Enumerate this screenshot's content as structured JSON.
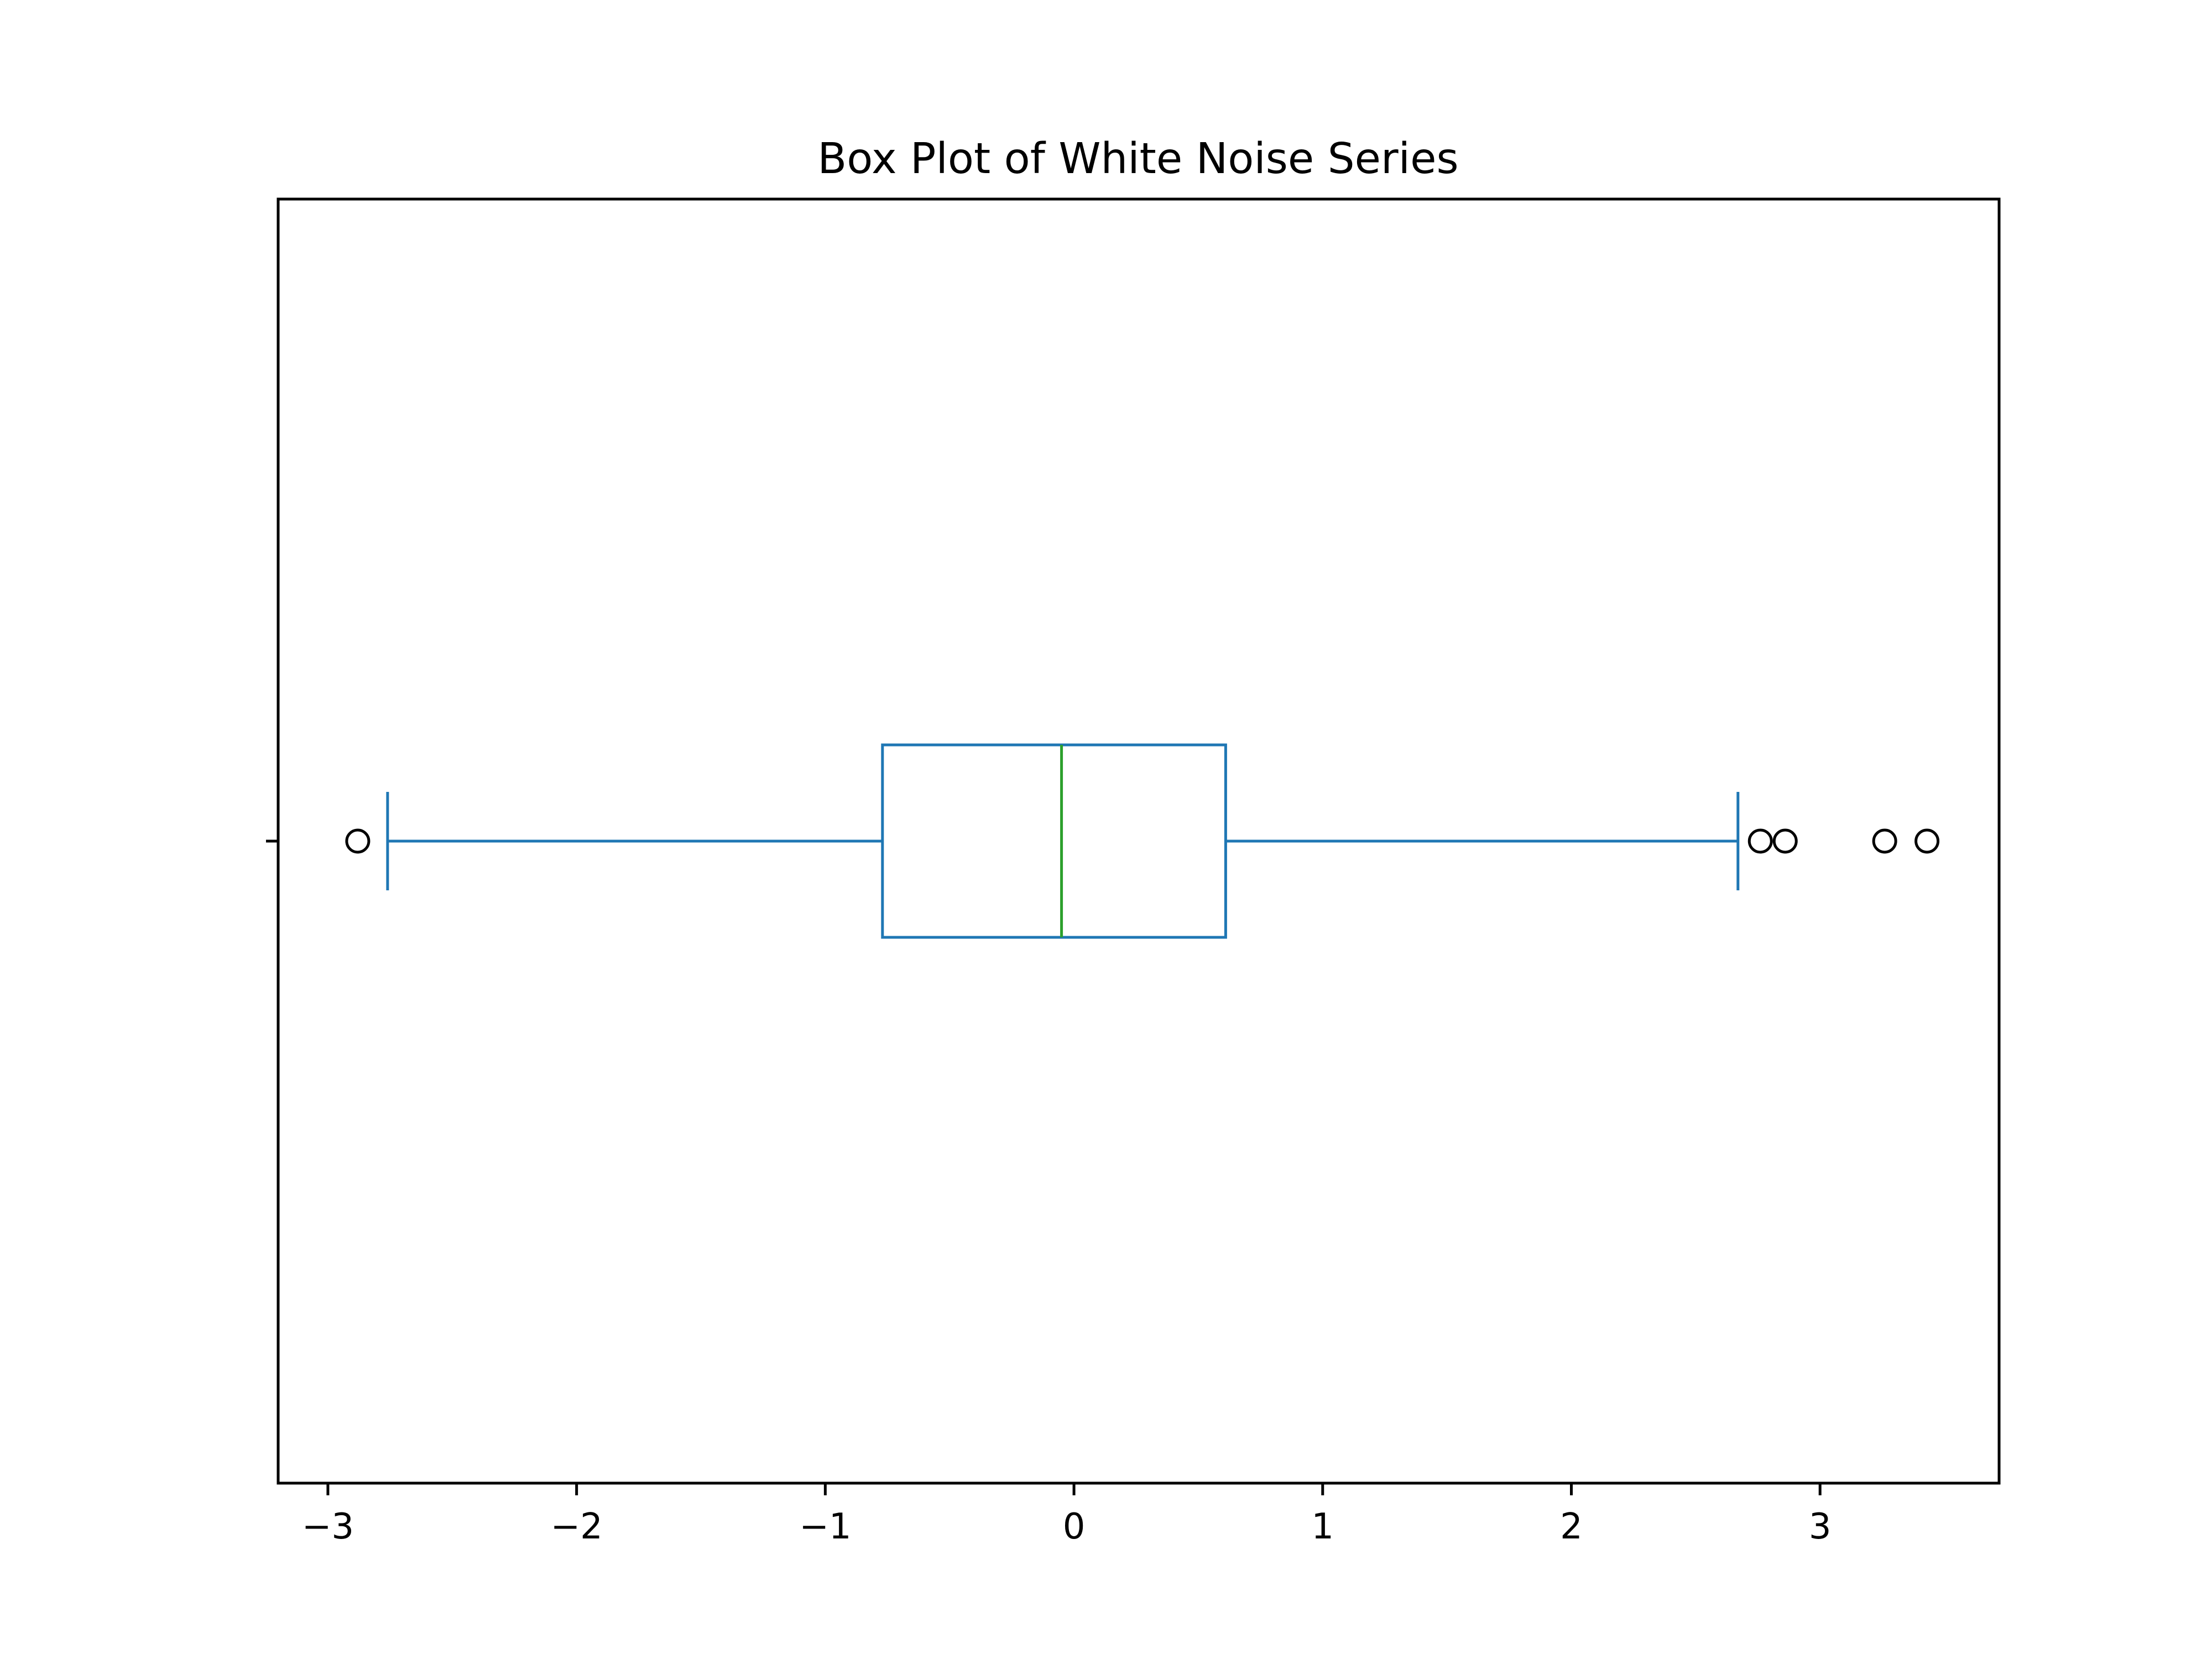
{
  "chart_data": {
    "type": "box",
    "title": "Box Plot of White Noise Series",
    "xlabel": "",
    "ylabel": "",
    "orientation": "horizontal",
    "xlim": [
      -3.2,
      3.72
    ],
    "xticks": [
      {
        "value": -3,
        "label": "−3"
      },
      {
        "value": -2,
        "label": "−2"
      },
      {
        "value": -1,
        "label": "−1"
      },
      {
        "value": 0,
        "label": "0"
      },
      {
        "value": 1,
        "label": "1"
      },
      {
        "value": 2,
        "label": "2"
      },
      {
        "value": 3,
        "label": "3"
      }
    ],
    "series": [
      {
        "whisker_low": -2.76,
        "q1": -0.77,
        "median": -0.05,
        "q3": 0.61,
        "whisker_high": 2.67,
        "outliers": [
          -2.88,
          2.76,
          2.86,
          3.26,
          3.43
        ]
      }
    ],
    "grid": false,
    "colors": {
      "box": "#1f77b4",
      "median": "#2ca02c",
      "outlier": "#000000",
      "axes": "#000000",
      "background": "#ffffff"
    }
  }
}
